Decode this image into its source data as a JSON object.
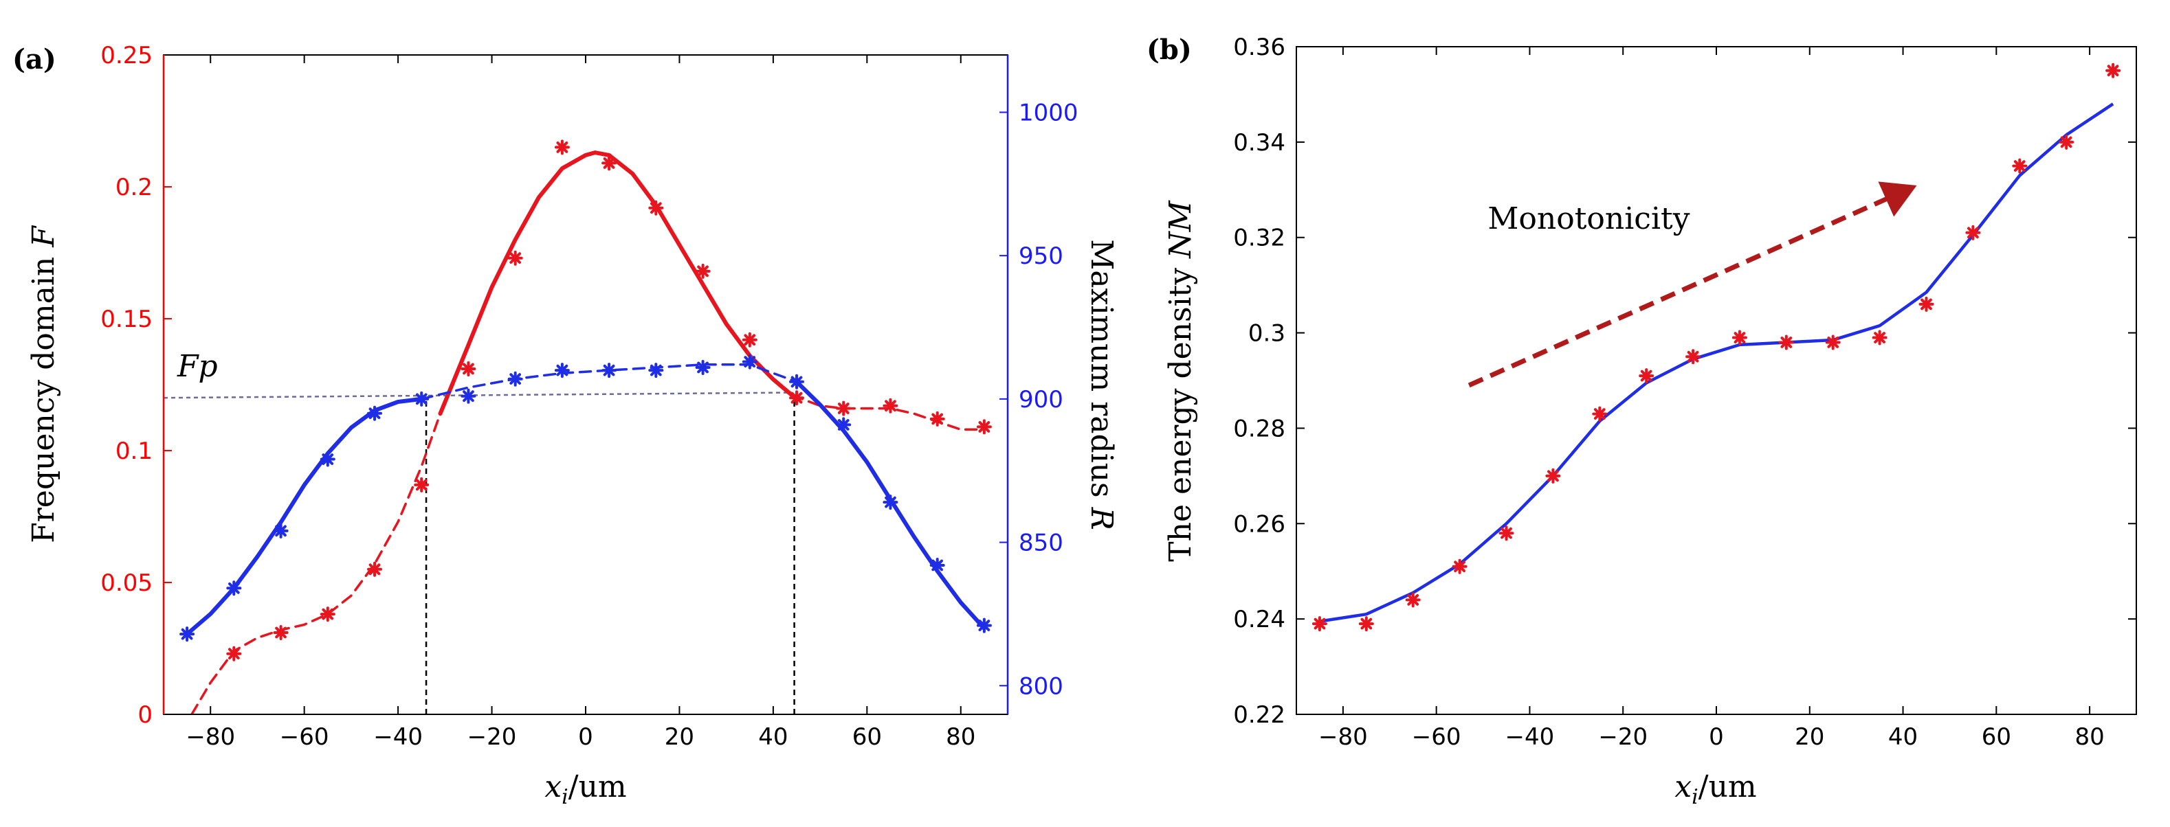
{
  "figure": {
    "panel_a_label": "(a)",
    "panel_b_label": "(b)"
  },
  "chart_data": [
    {
      "type": "line+scatter",
      "panel": "(a)",
      "xlabel_var": "x",
      "xlabel_sub": "i",
      "xlabel_unit": "/um",
      "ylabel_left_text": "Frequency  domain ",
      "ylabel_left_var": "F",
      "ylabel_right_text": "Maximum radius ",
      "ylabel_right_var": "R",
      "xlim": [
        -90,
        90
      ],
      "ylim_left": [
        0,
        0.25
      ],
      "ylim_right": [
        790,
        1020
      ],
      "x_ticks": [
        -80,
        -60,
        -40,
        -20,
        0,
        20,
        40,
        60,
        80
      ],
      "x_tick_labels": [
        "−80",
        "−60",
        "−40",
        "−20",
        "0",
        "20",
        "40",
        "60",
        "80"
      ],
      "y_left_ticks": [
        0,
        0.05,
        0.1,
        0.15,
        0.2,
        0.25
      ],
      "y_left_tick_labels": [
        "0",
        "0.05",
        "0.1",
        "0.15",
        "0.2",
        "0.25"
      ],
      "y_right_ticks": [
        800,
        850,
        900,
        950,
        1000
      ],
      "y_right_tick_labels": [
        "800",
        "850",
        "900",
        "950",
        "1000"
      ],
      "colors": {
        "left_axis": "#ff0000",
        "right_axis": "#1a1aff",
        "red": "#e8141e",
        "blue": "#1f2ee6",
        "guide": "#6b6b9c",
        "black": "#000000"
      },
      "series": [
        {
          "name": "F points",
          "axis": "left",
          "marker": "asterisk",
          "color": "#e8141e",
          "x": [
            -75,
            -65,
            -55,
            -45,
            -35,
            -25,
            -15,
            -5,
            5,
            15,
            25,
            35,
            45,
            55,
            65,
            75,
            85
          ],
          "values": [
            0.023,
            0.031,
            0.038,
            0.055,
            0.087,
            0.131,
            0.173,
            0.215,
            0.209,
            0.192,
            0.168,
            0.142,
            0.12,
            0.116,
            0.117,
            0.112,
            0.109
          ]
        },
        {
          "name": "F fit (dashed, low)",
          "axis": "left",
          "style": "dashed",
          "color": "#e8141e",
          "x": [
            -84,
            -80,
            -75,
            -70,
            -65,
            -60,
            -55,
            -50,
            -45,
            -40,
            -35,
            -31
          ],
          "values": [
            0.0,
            0.012,
            0.024,
            0.029,
            0.032,
            0.034,
            0.038,
            0.045,
            0.057,
            0.073,
            0.094,
            0.114
          ]
        },
        {
          "name": "F fit (solid, peak)",
          "axis": "left",
          "style": "solid",
          "color": "#e8141e",
          "x": [
            -31,
            -25,
            -20,
            -15,
            -10,
            -5,
            0,
            2,
            5,
            10,
            15,
            20,
            25,
            30,
            35,
            40,
            44
          ],
          "values": [
            0.114,
            0.14,
            0.162,
            0.18,
            0.196,
            0.207,
            0.212,
            0.213,
            0.212,
            0.205,
            0.193,
            0.178,
            0.163,
            0.148,
            0.136,
            0.127,
            0.121
          ]
        },
        {
          "name": "F fit (dashed, high)",
          "axis": "left",
          "style": "dashed",
          "color": "#e8141e",
          "x": [
            44,
            50,
            55,
            60,
            65,
            70,
            75,
            80,
            85
          ],
          "values": [
            0.121,
            0.117,
            0.116,
            0.116,
            0.116,
            0.114,
            0.111,
            0.108,
            0.108
          ]
        },
        {
          "name": "R points",
          "axis": "right",
          "marker": "asterisk",
          "color": "#1f2ee6",
          "x": [
            -85,
            -75,
            -65,
            -55,
            -45,
            -35,
            -25,
            -15,
            -5,
            5,
            15,
            25,
            35,
            45,
            55,
            65,
            75,
            85
          ],
          "values": [
            818,
            834,
            854,
            879,
            895,
            900,
            901,
            907,
            910,
            910,
            910,
            911,
            913,
            906,
            891,
            864,
            842,
            821
          ]
        },
        {
          "name": "R fit (solid, low)",
          "axis": "right",
          "style": "solid",
          "color": "#1f2ee6",
          "x": [
            -85,
            -80,
            -75,
            -70,
            -65,
            -60,
            -55,
            -50,
            -45,
            -40,
            -35
          ],
          "values": [
            818,
            825,
            834,
            845,
            857,
            870,
            881,
            890,
            896,
            899,
            900
          ]
        },
        {
          "name": "R fit (dashed, mid)",
          "axis": "right",
          "style": "dashed",
          "color": "#1f2ee6",
          "x": [
            -35,
            -25,
            -15,
            -5,
            5,
            15,
            25,
            35,
            45
          ],
          "values": [
            900,
            904,
            907,
            909,
            910,
            911,
            912,
            912,
            906
          ]
        },
        {
          "name": "R fit (solid, high)",
          "axis": "right",
          "style": "solid",
          "color": "#1f2ee6",
          "x": [
            45,
            50,
            55,
            60,
            65,
            70,
            75,
            80,
            85
          ],
          "values": [
            906,
            898,
            889,
            878,
            865,
            852,
            840,
            829,
            820
          ]
        }
      ],
      "reference_line": {
        "label": "Fp",
        "value_left": 0.12,
        "x_start": -90,
        "x_end": 44,
        "y_end_left": 0.122,
        "color": "#6b6b9c"
      },
      "vertical_markers": [
        {
          "x": -34,
          "from_left": 0,
          "to_left": 0.12
        },
        {
          "x": 44.5,
          "from_left": 0,
          "to_left": 0.121
        }
      ]
    },
    {
      "type": "line+scatter",
      "panel": "(b)",
      "xlabel_var": "x",
      "xlabel_sub": "i",
      "xlabel_unit": "/um",
      "ylabel_text": "The energy density ",
      "ylabel_var": "NM",
      "xlim": [
        -90,
        90
      ],
      "ylim": [
        0.22,
        0.36
      ],
      "x_ticks": [
        -80,
        -60,
        -40,
        -20,
        0,
        20,
        40,
        60,
        80
      ],
      "x_tick_labels": [
        "−80",
        "−60",
        "−40",
        "−20",
        "0",
        "20",
        "40",
        "60",
        "80"
      ],
      "y_ticks": [
        0.22,
        0.24,
        0.26,
        0.28,
        0.3,
        0.32,
        0.34,
        0.36
      ],
      "y_tick_labels": [
        "0.22",
        "0.24",
        "0.26",
        "0.28",
        "0.3",
        "0.32",
        "0.34",
        "0.36"
      ],
      "colors": {
        "points": "#e8141e",
        "line": "#1f2ee6",
        "arrow": "#b01a1a"
      },
      "series": [
        {
          "name": "NM points",
          "marker": "asterisk",
          "color": "#e8141e",
          "x": [
            -85,
            -75,
            -65,
            -55,
            -45,
            -35,
            -25,
            -15,
            -5,
            5,
            15,
            25,
            35,
            45,
            55,
            65,
            75,
            85
          ],
          "values": [
            0.239,
            0.239,
            0.244,
            0.251,
            0.258,
            0.27,
            0.283,
            0.291,
            0.295,
            0.299,
            0.298,
            0.298,
            0.299,
            0.306,
            0.321,
            0.335,
            0.34,
            0.355
          ]
        },
        {
          "name": "NM fit",
          "style": "solid",
          "color": "#1f2ee6",
          "x": [
            -85,
            -75,
            -65,
            -55,
            -45,
            -35,
            -25,
            -15,
            -5,
            5,
            15,
            25,
            35,
            45,
            55,
            65,
            75,
            85
          ],
          "values": [
            0.2395,
            0.241,
            0.2455,
            0.2515,
            0.26,
            0.27,
            0.2815,
            0.2895,
            0.2945,
            0.2975,
            0.298,
            0.2985,
            0.3015,
            0.3085,
            0.3205,
            0.333,
            0.3415,
            0.348
          ]
        }
      ],
      "annotation": {
        "text": "Monotonicity",
        "x": -49,
        "y": 0.3218
      },
      "arrow": {
        "x_start": -53,
        "y_start": 0.289,
        "x_end": 42,
        "y_end": 0.3305
      }
    }
  ]
}
